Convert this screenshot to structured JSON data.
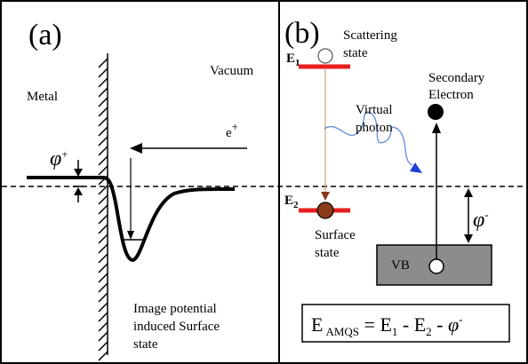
{
  "panel_a": {
    "label": "(a)",
    "metal": "Metal",
    "vacuum": "Vacuum",
    "positron": "e",
    "positron_sup": "+",
    "work_function": "φ",
    "work_function_sup": "+",
    "surface_state_line1": "Image potential",
    "surface_state_line2": "induced Surface",
    "surface_state_line3": "state"
  },
  "panel_b": {
    "label": "(b)",
    "e1": "E",
    "e1_sub": "1",
    "e2": "E",
    "e2_sub": "2",
    "scattering_line1": "Scattering",
    "scattering_line2": "state",
    "secondary_line1": "Secondary",
    "secondary_line2": "Electron",
    "photon_line1": "Virtual",
    "photon_line2": "photon",
    "surface_line1": "Surface",
    "surface_line2": "state",
    "work_function": "φ",
    "work_function_sup": "-",
    "valence_band": "VB",
    "equation": {
      "e": "E",
      "sub": "AMQS",
      "eq_part1": " = E",
      "sub1": "1",
      "eq_part2": " - E",
      "sub2": "2",
      "eq_part3": " - ",
      "phi": "φ",
      "phi_sup": "-"
    }
  },
  "colors": {
    "level_red": "#e81e1e",
    "surface_state_fill": "#8b3a1a",
    "photon_line": "#6a8fd8",
    "photon_head": "#1f3fd6",
    "vb_fill": "#8c8c8c",
    "transition_line": "#c8a878"
  }
}
